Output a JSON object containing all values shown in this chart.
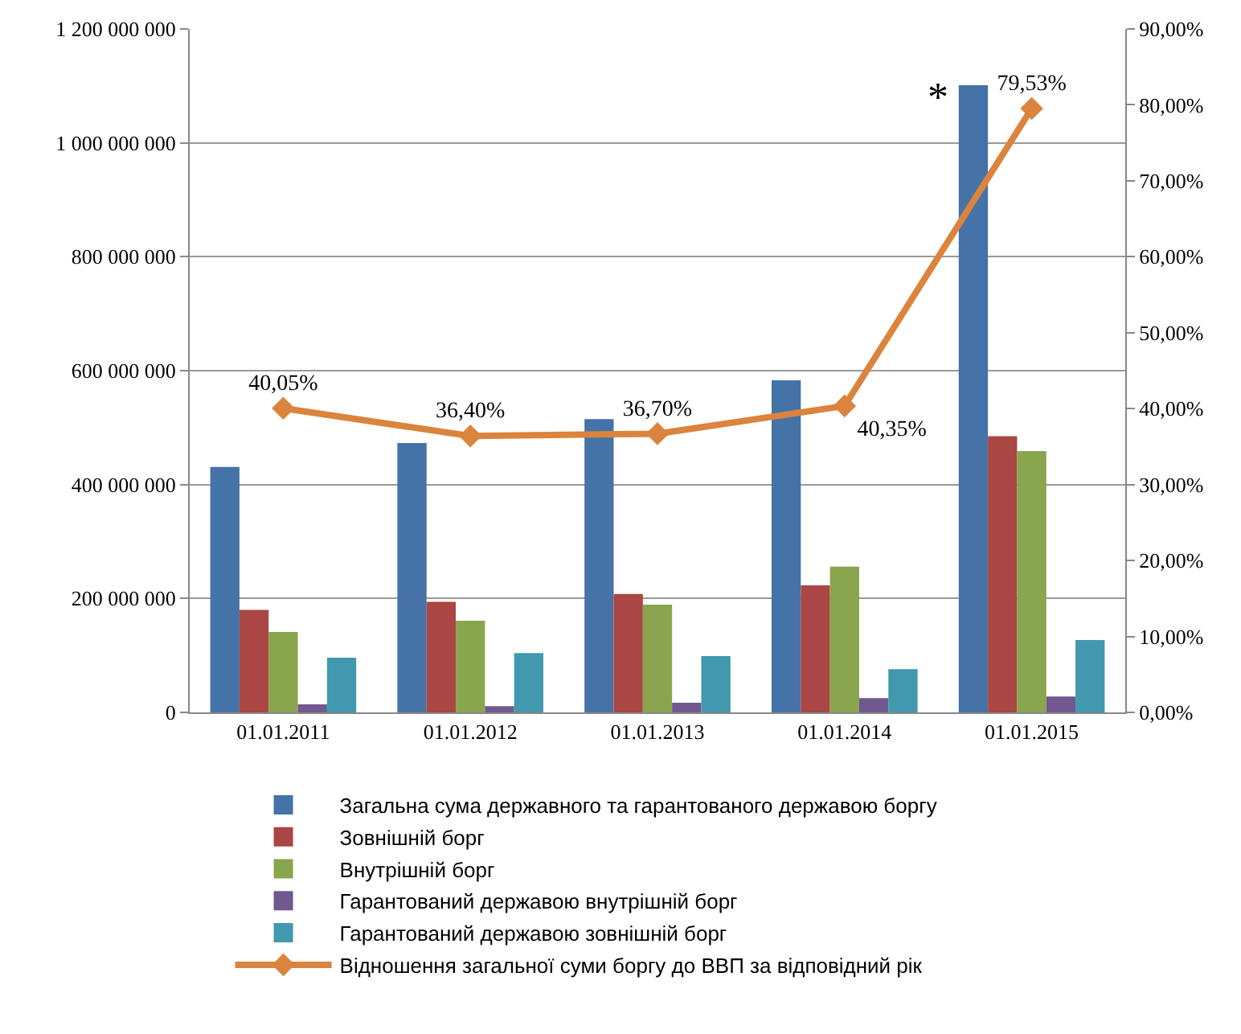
{
  "chart_data": {
    "type": "bar",
    "categories": [
      "01.01.2011",
      "01.01.2012",
      "01.01.2013",
      "01.01.2014",
      "01.01.2015"
    ],
    "series": [
      {
        "name": "Загальна сума державного та гарантованого державою боргу",
        "color": "#4572a7",
        "values": [
          431000000,
          473000000,
          515000000,
          583000000,
          1101000000
        ]
      },
      {
        "name": "Зовнішній борг",
        "color": "#aa4643",
        "values": [
          180000000,
          194000000,
          208000000,
          223000000,
          485000000
        ]
      },
      {
        "name": "Внутрішній борг",
        "color": "#89a54e",
        "values": [
          141000000,
          161000000,
          189000000,
          256000000,
          459000000
        ]
      },
      {
        "name": "Гарантований державою внутрішній борг",
        "color": "#71588f",
        "values": [
          14000000,
          11000000,
          17000000,
          25000000,
          28000000
        ]
      },
      {
        "name": "Гарантований державою зовнішній борг",
        "color": "#4198af",
        "values": [
          96000000,
          104000000,
          99000000,
          76000000,
          127000000
        ]
      },
      {
        "name": "Відношення загальної суми боргу до ВВП за відповідний рік",
        "type": "line",
        "axis": "y2",
        "color": "#db843d",
        "marker": "diamond",
        "values": [
          40.05,
          36.4,
          36.7,
          40.35,
          79.53
        ],
        "value_labels": [
          "40,05%",
          "36,40%",
          "36,70%",
          "40,35%",
          "79,53%"
        ]
      }
    ],
    "ylim": [
      0,
      1200000000
    ],
    "yticks": [
      0,
      {
        "value": 200000000,
        "label": "200 000 000"
      },
      {
        "value": 400000000,
        "label": "400 000 000"
      },
      {
        "value": 600000000,
        "label": "600 000 000"
      },
      {
        "value": 800000000,
        "label": "800 000 000"
      },
      {
        "value": 1000000000,
        "label": "1 000 000 000"
      },
      {
        "value": 1200000000,
        "label": "1 200 000 000"
      }
    ],
    "y2lim": [
      0,
      90
    ],
    "y2ticks": [
      {
        "value": 0,
        "label": "0,00%"
      },
      {
        "value": 10,
        "label": "10,00%"
      },
      {
        "value": 20,
        "label": "20,00%"
      },
      {
        "value": 30,
        "label": "30,00%"
      },
      {
        "value": 40,
        "label": "40,00%"
      },
      {
        "value": 50,
        "label": "50,00%"
      },
      {
        "value": 60,
        "label": "60,00%"
      },
      {
        "value": 70,
        "label": "70,00%"
      },
      {
        "value": 80,
        "label": "80,00%"
      },
      {
        "value": 90,
        "label": "90,00%"
      }
    ],
    "annotations": [
      "*"
    ],
    "grid": "y",
    "legend": "bottom"
  }
}
